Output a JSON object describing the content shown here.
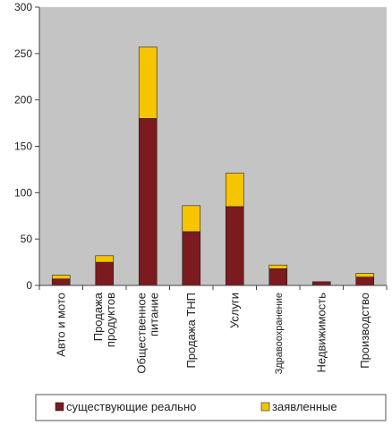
{
  "chart_data": {
    "type": "bar",
    "stacked": true,
    "categories": [
      "Авто и мото",
      "Продажа продуктов",
      "Общественное питание",
      "Продажа ТНП",
      "Услуги",
      "Здравоохранение",
      "Недвижимость",
      "Производство"
    ],
    "category_lines": [
      [
        "Авто и мото"
      ],
      [
        "Продажа",
        "продуктов"
      ],
      [
        "Общественное",
        "питание"
      ],
      [
        "Продажа ТНП"
      ],
      [
        "Услуги"
      ],
      [
        "Здравоохранение"
      ],
      [
        "Недвижимость"
      ],
      [
        "Производство"
      ]
    ],
    "series": [
      {
        "name": "существующие реально",
        "values": [
          7,
          25,
          180,
          58,
          85,
          18,
          4,
          9
        ],
        "color": "#7b1a1f"
      },
      {
        "name": "заявленные",
        "values": [
          4,
          7,
          77,
          28,
          36,
          4,
          0,
          4
        ],
        "color": "#f6c400"
      }
    ],
    "ylim": [
      0,
      300
    ],
    "yticks": [
      0,
      50,
      100,
      150,
      200,
      250,
      300
    ],
    "grid": false,
    "legend_position": "bottom",
    "plot_background": "#c4c4c4",
    "xlabel": "",
    "ylabel": ""
  }
}
